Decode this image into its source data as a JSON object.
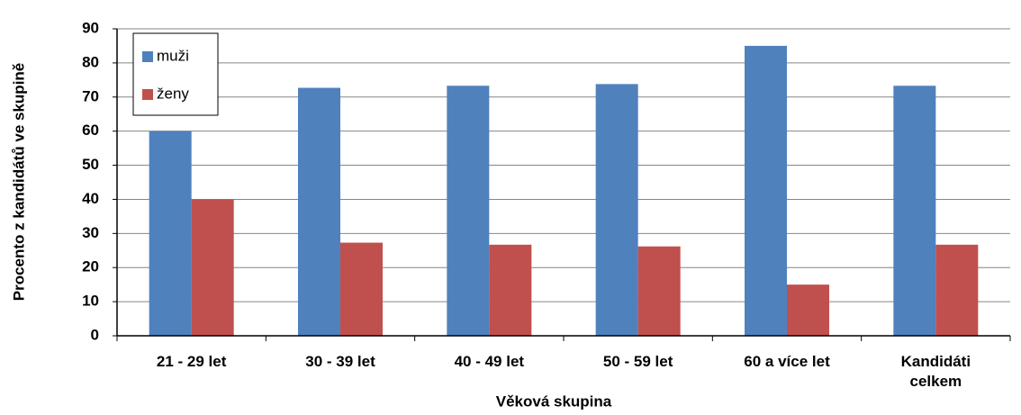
{
  "chart_data": {
    "type": "bar",
    "categories": [
      "21 - 29 let",
      "30 - 39 let",
      "40 - 49 let",
      "50 - 59 let",
      "60 a více let",
      "Kandidáti celkem"
    ],
    "series": [
      {
        "name": "muži",
        "color": "#4f81bd",
        "values": [
          60,
          72.7,
          73.3,
          73.8,
          85,
          73.3
        ]
      },
      {
        "name": "ženy",
        "color": "#c0504d",
        "values": [
          40,
          27.3,
          26.7,
          26.2,
          15,
          26.7
        ]
      }
    ],
    "xlabel": "Věková skupina",
    "ylabel": "Procento z kandidátů ve skupině",
    "ylim": [
      0,
      90
    ],
    "yticks": [
      0,
      10,
      20,
      30,
      40,
      50,
      60,
      70,
      80,
      90
    ],
    "grid": true,
    "legend": "upper left"
  }
}
